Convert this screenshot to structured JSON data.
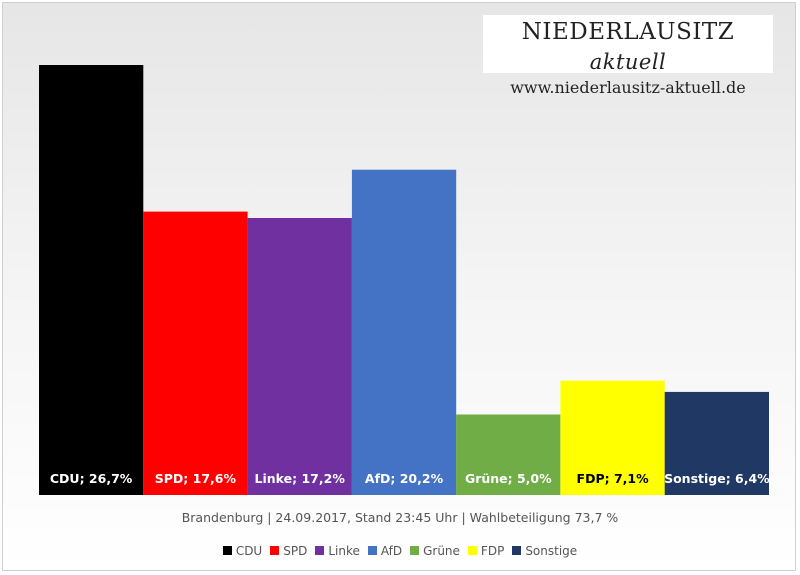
{
  "brand": {
    "name": "NIEDERLAUSITZ",
    "name_italic": "aktuell",
    "url": "www.niederlausitz-aktuell.de"
  },
  "chart_data": {
    "type": "bar",
    "subtitle": "Brandenburg | 24.09.2017, Stand 23:45 Uhr | Wahlbeteiligung 73,7 %",
    "categories": [
      "CDU",
      "SPD",
      "Linke",
      "AfD",
      "Grüne",
      "FDP",
      "Sonstige"
    ],
    "values": [
      26.7,
      17.6,
      17.2,
      20.2,
      5.0,
      7.1,
      6.4
    ],
    "data_labels": [
      "CDU; 26,7%",
      "SPD; 17,6%",
      "Linke; 17,2%",
      "AfD; 20,2%",
      "Grüne; 5,0%",
      "FDP; 7,1%",
      "Sonstige; 6,4%"
    ],
    "colors": [
      "#000000",
      "#ff0000",
      "#7030a0",
      "#4472c4",
      "#70ad47",
      "#ffff00",
      "#203864"
    ],
    "label_colors": [
      "#ffffff",
      "#ffffff",
      "#ffffff",
      "#ffffff",
      "#ffffff",
      "#000000",
      "#ffffff"
    ],
    "ylim": [
      0,
      26.7
    ],
    "grid": false,
    "legend_position": "bottom"
  }
}
